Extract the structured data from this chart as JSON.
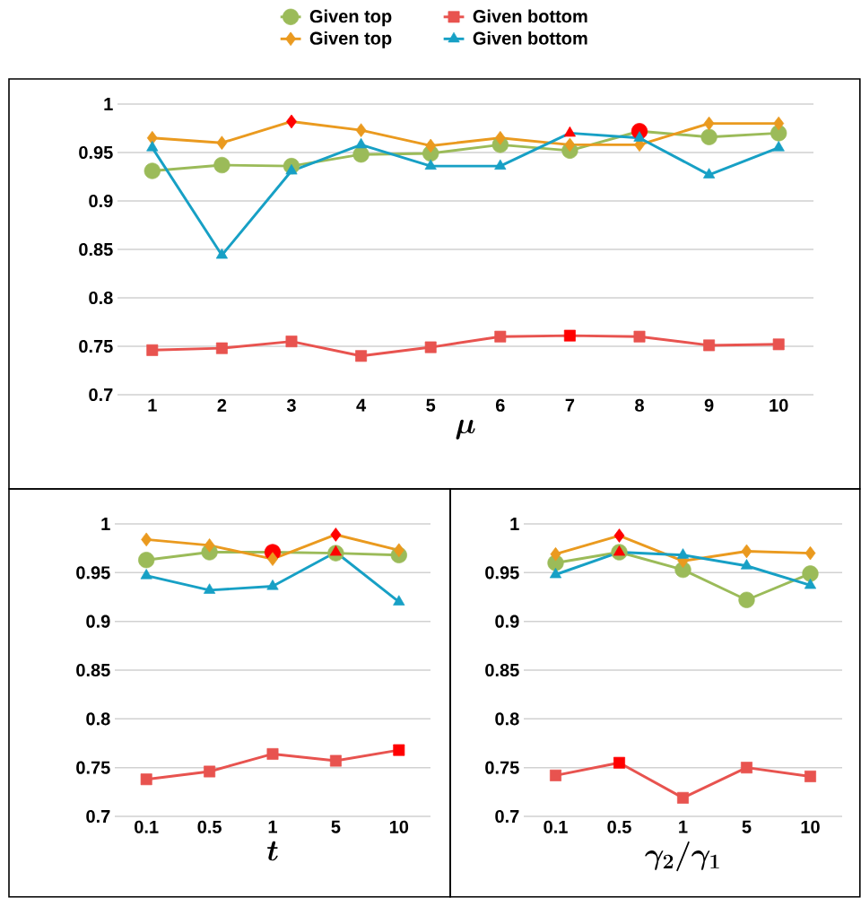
{
  "chart_data": [
    {
      "type": "line",
      "categories": [
        "1",
        "2",
        "3",
        "4",
        "5",
        "6",
        "7",
        "8",
        "9",
        "10"
      ],
      "xlabel": "\\mu",
      "ylim": [
        0.7,
        1
      ],
      "yticks": [
        0.7,
        0.75,
        0.8,
        0.85,
        0.9,
        0.95,
        1
      ],
      "grid": "y",
      "legend": "top",
      "series": [
        {
          "name": "Given top",
          "color": "#9bbb59",
          "marker": "circle",
          "values": [
            0.931,
            0.937,
            0.936,
            0.948,
            0.949,
            0.958,
            0.952,
            0.972,
            0.966,
            0.97
          ],
          "colors": [
            "#9bbb59",
            "#9bbb59",
            "#9bbb59",
            "#9bbb59",
            "#9bbb59",
            "#9bbb59",
            "#9bbb59",
            "#ff0000",
            "#9bbb59",
            "#9bbb59"
          ]
        },
        {
          "name": "Given bottom",
          "color": "#e8534f",
          "marker": "square",
          "values": [
            0.746,
            0.748,
            0.755,
            0.74,
            0.749,
            0.76,
            0.761,
            0.76,
            0.751,
            0.752
          ],
          "colors": [
            "#e8534f",
            "#e8534f",
            "#e8534f",
            "#e8534f",
            "#e8534f",
            "#e8534f",
            "#ff0000",
            "#e8534f",
            "#e8534f",
            "#e8534f"
          ]
        },
        {
          "name": "Given top",
          "color": "#ea9a1f",
          "marker": "diamond",
          "values": [
            0.965,
            0.96,
            0.982,
            0.973,
            0.957,
            0.965,
            0.958,
            0.958,
            0.98,
            0.98
          ],
          "colors": [
            "#ea9a1f",
            "#ea9a1f",
            "#ff0000",
            "#ea9a1f",
            "#ea9a1f",
            "#ea9a1f",
            "#ea9a1f",
            "#ea9a1f",
            "#ea9a1f",
            "#ea9a1f"
          ]
        },
        {
          "name": "Given bottom",
          "color": "#17a0c5",
          "marker": "triangle",
          "values": [
            0.955,
            0.844,
            0.931,
            0.958,
            0.936,
            0.936,
            0.97,
            0.965,
            0.927,
            0.955
          ],
          "colors": [
            "#17a0c5",
            "#17a0c5",
            "#17a0c5",
            "#17a0c5",
            "#17a0c5",
            "#17a0c5",
            "#ff0000",
            "#17a0c5",
            "#17a0c5",
            "#17a0c5"
          ]
        }
      ]
    },
    {
      "type": "line",
      "categories": [
        "0.1",
        "0.5",
        "1",
        "5",
        "10"
      ],
      "xlabel": "t",
      "ylim": [
        0.7,
        1
      ],
      "yticks": [
        0.7,
        0.75,
        0.8,
        0.85,
        0.9,
        0.95,
        1
      ],
      "grid": "y",
      "series": [
        {
          "color": "#9bbb59",
          "marker": "circle",
          "values": [
            0.963,
            0.971,
            0.971,
            0.97,
            0.968
          ],
          "colors": [
            "#9bbb59",
            "#9bbb59",
            "#ff0000",
            "#9bbb59",
            "#9bbb59"
          ]
        },
        {
          "color": "#e8534f",
          "marker": "square",
          "values": [
            0.738,
            0.746,
            0.764,
            0.757,
            0.768
          ],
          "colors": [
            "#e8534f",
            "#e8534f",
            "#e8534f",
            "#e8534f",
            "#ff0000"
          ]
        },
        {
          "color": "#ea9a1f",
          "marker": "diamond",
          "values": [
            0.984,
            0.978,
            0.964,
            0.989,
            0.973
          ],
          "colors": [
            "#ea9a1f",
            "#ea9a1f",
            "#ea9a1f",
            "#ff0000",
            "#ea9a1f"
          ]
        },
        {
          "color": "#17a0c5",
          "marker": "triangle",
          "values": [
            0.947,
            0.932,
            0.936,
            0.971,
            0.92
          ],
          "colors": [
            "#17a0c5",
            "#17a0c5",
            "#17a0c5",
            "#ff0000",
            "#17a0c5"
          ]
        }
      ]
    },
    {
      "type": "line",
      "categories": [
        "0.1",
        "0.5",
        "1",
        "5",
        "10"
      ],
      "xlabel": "\\gamma_2/\\gamma_1",
      "ylim": [
        0.7,
        1
      ],
      "yticks": [
        0.7,
        0.75,
        0.8,
        0.85,
        0.9,
        0.95,
        1
      ],
      "grid": "y",
      "series": [
        {
          "color": "#9bbb59",
          "marker": "circle",
          "values": [
            0.96,
            0.971,
            0.953,
            0.922,
            0.949
          ],
          "colors": [
            "#9bbb59",
            "#9bbb59",
            "#9bbb59",
            "#9bbb59",
            "#9bbb59"
          ]
        },
        {
          "color": "#e8534f",
          "marker": "square",
          "values": [
            0.742,
            0.755,
            0.719,
            0.75,
            0.741
          ],
          "colors": [
            "#e8534f",
            "#ff0000",
            "#e8534f",
            "#e8534f",
            "#e8534f"
          ]
        },
        {
          "color": "#ea9a1f",
          "marker": "diamond",
          "values": [
            0.969,
            0.988,
            0.962,
            0.972,
            0.97
          ],
          "colors": [
            "#ea9a1f",
            "#ff0000",
            "#ea9a1f",
            "#ea9a1f",
            "#ea9a1f"
          ]
        },
        {
          "color": "#17a0c5",
          "marker": "triangle",
          "values": [
            0.948,
            0.971,
            0.968,
            0.957,
            0.937
          ],
          "colors": [
            "#17a0c5",
            "#ff0000",
            "#17a0c5",
            "#17a0c5",
            "#17a0c5"
          ]
        }
      ]
    }
  ]
}
